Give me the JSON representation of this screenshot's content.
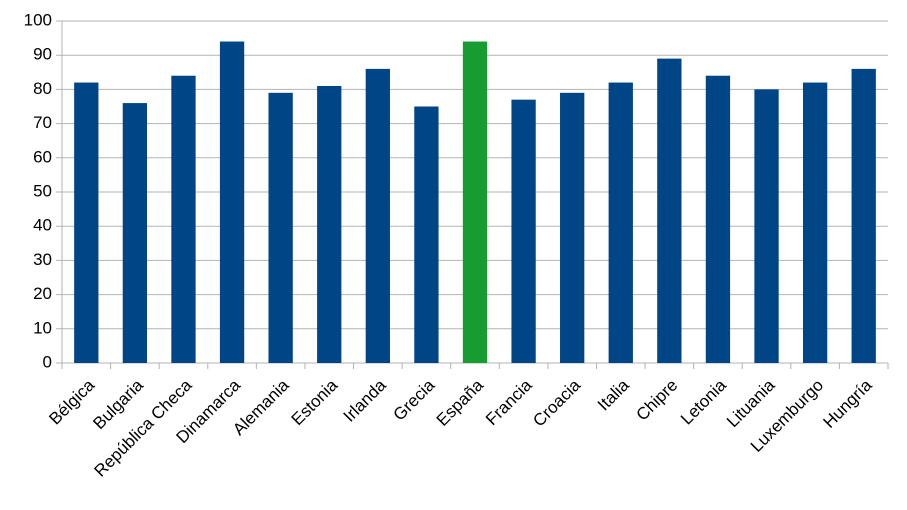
{
  "chart_data": {
    "type": "bar",
    "categories": [
      "Bélgica",
      "Bulgaria",
      "República Checa",
      "Dinamarca",
      "Alemania",
      "Estonia",
      "Irlanda",
      "Grecia",
      "España",
      "Francia",
      "Croacia",
      "Italia",
      "Chipre",
      "Letonia",
      "Lituania",
      "Luxemburgo",
      "Hungría"
    ],
    "values": [
      82,
      76,
      84,
      94,
      79,
      81,
      86,
      75,
      94,
      77,
      79,
      82,
      89,
      84,
      80,
      82,
      86
    ],
    "colors": [
      "#004586",
      "#004586",
      "#004586",
      "#004586",
      "#004586",
      "#004586",
      "#004586",
      "#004586",
      "#169c31",
      "#004586",
      "#004586",
      "#004586",
      "#004586",
      "#004586",
      "#004586",
      "#004586",
      "#004586"
    ],
    "ylim": [
      0,
      100
    ],
    "yticks": [
      0,
      10,
      20,
      30,
      40,
      50,
      60,
      70,
      80,
      90,
      100
    ],
    "grid": true
  }
}
